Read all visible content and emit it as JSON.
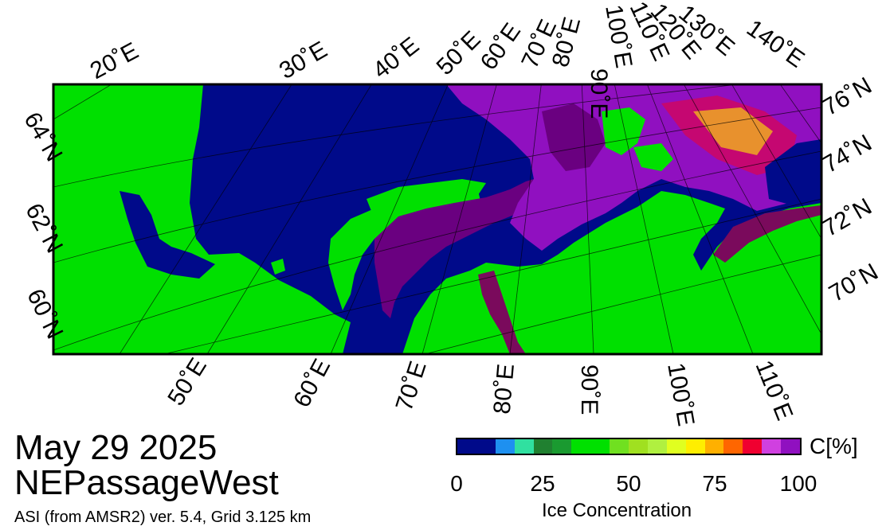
{
  "map": {
    "colors": {
      "land": "#00e000",
      "open_water": "#000a8a",
      "ice_low": "#6a0080",
      "ice_mid": "#9010c0",
      "ice_red": "#f00030",
      "ice_yellow": "#ffee00",
      "fast_ice": "#7a0a5c",
      "missing": "#909090",
      "frame": "#000000"
    },
    "lon_labels_top": [
      "20˚E",
      "30˚E",
      "40˚E",
      "50˚E",
      "60˚E",
      "70˚E",
      "80˚E",
      "90˚E",
      "100˚E",
      "110˚E",
      "120˚E",
      "130˚E",
      "140˚E"
    ],
    "lon_labels_bottom": [
      "50˚E",
      "60˚E",
      "70˚E",
      "80˚E",
      "90˚E",
      "100˚E",
      "110˚E"
    ],
    "lat_labels_left": [
      "64˚N",
      "62˚N",
      "60˚N"
    ],
    "lat_labels_right": [
      "76˚N",
      "74˚N",
      "72˚N",
      "70˚N"
    ]
  },
  "info": {
    "date": "May 29 2025",
    "region": "NEPassageWest",
    "product": "ASI (from AMSR2) ver. 5.4,  Grid 3.125 km"
  },
  "colorbar": {
    "unit": "C[%]",
    "title": "Ice Concentration",
    "ticks": [
      "0",
      "25",
      "50",
      "75",
      "100"
    ],
    "colors": [
      "#000a8a",
      "#000a8a",
      "#1e90f0",
      "#30e0a0",
      "#208030",
      "#1a9a30",
      "#00e000",
      "#00e000",
      "#70e020",
      "#a0e020",
      "#b0f040",
      "#e0ff20",
      "#ffee00",
      "#ffb000",
      "#ff6600",
      "#f00030",
      "#d040e0",
      "#9010c0"
    ]
  }
}
